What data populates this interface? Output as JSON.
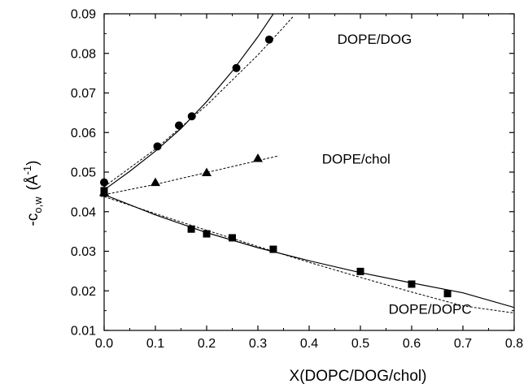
{
  "chart_data": {
    "type": "scatter",
    "xlabel": "X(DOPC/DOG/chol)",
    "ylabel": {
      "base": "-c",
      "sub": "o,w",
      "unit_open": "(Å",
      "unit_sup": "-1",
      "unit_close": ")"
    },
    "xlim": [
      0.0,
      0.8
    ],
    "ylim": [
      0.01,
      0.09
    ],
    "xticks": [
      0.0,
      0.1,
      0.2,
      0.3,
      0.4,
      0.5,
      0.6,
      0.7,
      0.8
    ],
    "yticks": [
      0.01,
      0.02,
      0.03,
      0.04,
      0.05,
      0.06,
      0.07,
      0.08,
      0.09
    ],
    "xtick_labels": [
      "0.0",
      "0.1",
      "0.2",
      "0.3",
      "0.4",
      "0.5",
      "0.6",
      "0.7",
      "0.8"
    ],
    "ytick_labels": [
      "0.01",
      "0.02",
      "0.03",
      "0.04",
      "0.05",
      "0.06",
      "0.07",
      "0.08",
      "0.09"
    ],
    "grid": false,
    "series": [
      {
        "name": "DOPE/DOG",
        "marker": "circle",
        "points": [
          [
            0.0,
            0.0474
          ],
          [
            0.104,
            0.0565
          ],
          [
            0.146,
            0.0618
          ],
          [
            0.171,
            0.0641
          ],
          [
            0.258,
            0.0763
          ],
          [
            0.322,
            0.0835
          ]
        ],
        "fit_solid": [
          [
            0.0,
            0.0455
          ],
          [
            0.05,
            0.0502
          ],
          [
            0.1,
            0.0553
          ],
          [
            0.15,
            0.061
          ],
          [
            0.2,
            0.0678
          ],
          [
            0.25,
            0.0755
          ],
          [
            0.3,
            0.0842
          ],
          [
            0.35,
            0.0938
          ],
          [
            0.37,
            0.0975
          ]
        ],
        "fit_dashed": [
          [
            0.0,
            0.0463
          ],
          [
            0.1,
            0.0558
          ],
          [
            0.2,
            0.0669
          ],
          [
            0.3,
            0.0796
          ],
          [
            0.35,
            0.0866
          ],
          [
            0.37,
            0.0895
          ]
        ]
      },
      {
        "name": "DOPE/chol",
        "marker": "triangle",
        "points": [
          [
            0.0,
            0.0449
          ],
          [
            0.1,
            0.0474
          ],
          [
            0.2,
            0.0499
          ],
          [
            0.3,
            0.0535
          ]
        ],
        "fit_dashed": [
          [
            0.0,
            0.0443
          ],
          [
            0.1,
            0.0469
          ],
          [
            0.2,
            0.0499
          ],
          [
            0.3,
            0.0529
          ],
          [
            0.34,
            0.0541
          ]
        ]
      },
      {
        "name": "DOPE/DOPC",
        "marker": "square",
        "points": [
          [
            0.0,
            0.0453
          ],
          [
            0.0,
            0.0447
          ],
          [
            0.17,
            0.0356
          ],
          [
            0.2,
            0.0344
          ],
          [
            0.25,
            0.0334
          ],
          [
            0.33,
            0.0305
          ],
          [
            0.5,
            0.0249
          ],
          [
            0.6,
            0.0217
          ],
          [
            0.67,
            0.0193
          ]
        ],
        "fit_solid": [
          [
            0.0,
            0.0443
          ],
          [
            0.1,
            0.0392
          ],
          [
            0.2,
            0.0347
          ],
          [
            0.3,
            0.0309
          ],
          [
            0.4,
            0.0276
          ],
          [
            0.5,
            0.0246
          ],
          [
            0.6,
            0.022
          ],
          [
            0.7,
            0.0195
          ],
          [
            0.8,
            0.0158
          ]
        ],
        "fit_dashed": [
          [
            0.0,
            0.0438
          ],
          [
            0.1,
            0.0395
          ],
          [
            0.2,
            0.0353
          ],
          [
            0.3,
            0.0312
          ],
          [
            0.4,
            0.0272
          ],
          [
            0.5,
            0.0234
          ],
          [
            0.6,
            0.0197
          ],
          [
            0.7,
            0.0162
          ],
          [
            0.8,
            0.0144
          ]
        ]
      }
    ],
    "annotations": [
      {
        "text": "DOPE/DOG",
        "x": 0.455,
        "y": 0.0836
      },
      {
        "text": "DOPE/chol",
        "x": 0.425,
        "y": 0.0534
      },
      {
        "text": "DOPE/DOPC",
        "x": 0.555,
        "y": 0.0154
      }
    ]
  }
}
